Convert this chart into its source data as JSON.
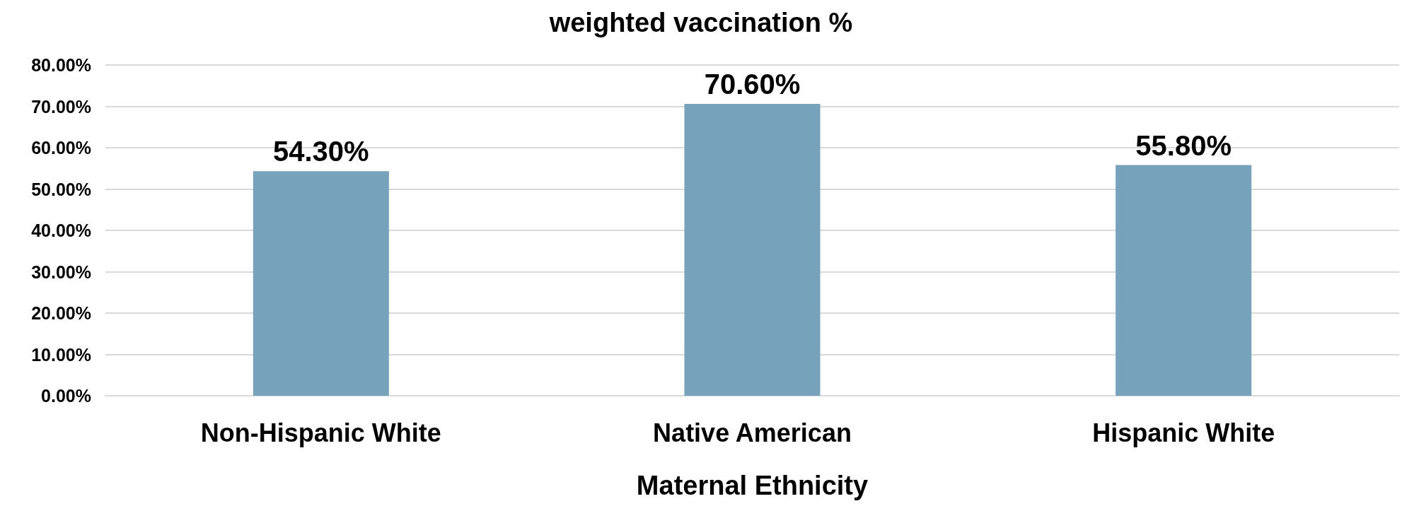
{
  "chart_data": {
    "type": "bar",
    "title": "weighted vaccination %",
    "xlabel": "Maternal Ethnicity",
    "categories": [
      "Non-Hispanic White",
      "Native American",
      "Hispanic White"
    ],
    "values": [
      54.3,
      70.6,
      55.8
    ],
    "color": "#76a3bb",
    "value_labels": [
      "54.30%",
      "70.60%",
      "55.80%"
    ],
    "ylim": [
      0,
      80
    ],
    "yticks": [
      {
        "value": 0,
        "label": "0.00%"
      },
      {
        "value": 10,
        "label": "10.00%"
      },
      {
        "value": 20,
        "label": "20.00%"
      },
      {
        "value": 30,
        "label": "30.00%"
      },
      {
        "value": 40,
        "label": "40.00%"
      },
      {
        "value": 50,
        "label": "50.00%"
      },
      {
        "value": 60,
        "label": "60.00%"
      },
      {
        "value": 70,
        "label": "70.00%"
      },
      {
        "value": 80,
        "label": "80.00%"
      }
    ],
    "grid": "y"
  }
}
